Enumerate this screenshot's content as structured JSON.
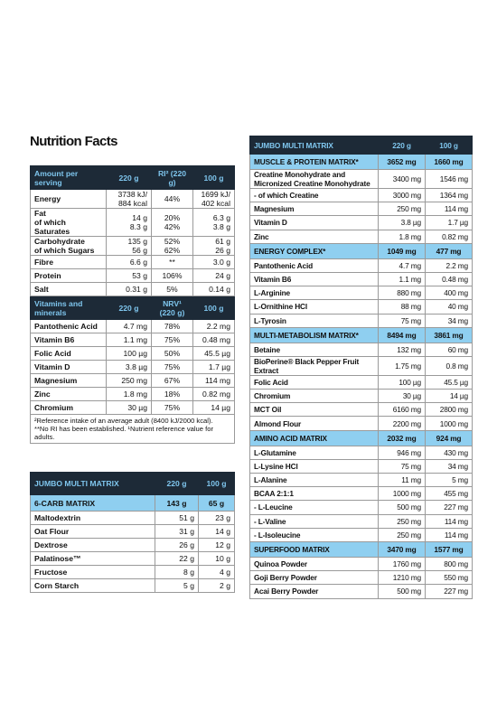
{
  "title": "Nutrition Facts",
  "nutrition_table": {
    "header": [
      "Amount per serving",
      "220 g",
      "RI² (220 g)",
      "100 g"
    ],
    "rows": [
      [
        "Energy",
        "3738 kJ/\n884 kcal",
        "44%",
        "1699 kJ/\n402 kcal"
      ],
      [
        "Fat\nof which Saturates",
        "14 g\n8.3 g",
        "20%\n42%",
        "6.3 g\n3.8 g"
      ],
      [
        "Carbohydrate\nof which Sugars",
        "135 g\n56 g",
        "52%\n62%",
        "61 g\n26 g"
      ],
      [
        "Fibre",
        "6.6 g",
        "**",
        "3.0 g"
      ],
      [
        "Protein",
        "53 g",
        "106%",
        "24 g"
      ],
      [
        "Salt",
        "0.31 g",
        "5%",
        "0.14 g"
      ]
    ],
    "section_header": [
      "Vitamins and minerals",
      "220 g",
      "NRV¹ (220 g)",
      "100 g"
    ],
    "vitamin_rows": [
      [
        "Pantothenic Acid",
        "4.7 mg",
        "78%",
        "2.2 mg"
      ],
      [
        "Vitamin B6",
        "1.1 mg",
        "75%",
        "0.48 mg"
      ],
      [
        "Folic Acid",
        "100 µg",
        "50%",
        "45.5 µg"
      ],
      [
        "Vitamin D",
        "3.8 µg",
        "75%",
        "1.7 µg"
      ],
      [
        "Magnesium",
        "250 mg",
        "67%",
        "114 mg"
      ],
      [
        "Zinc",
        "1.8 mg",
        "18%",
        "0.82 mg"
      ],
      [
        "Chromium",
        "30 µg",
        "75%",
        "14 µg"
      ]
    ],
    "footnote": "²Reference intake of an average adult (8400 kJ/2000 kcal).\n**No RI has been established. ¹Nutrient reference value for adults."
  },
  "carb_table": {
    "header": [
      "JUMBO MULTI MATRIX",
      "220 g",
      "100 g"
    ],
    "section": [
      "6-CARB MATRIX",
      "143 g",
      "65 g"
    ],
    "rows": [
      [
        "Maltodextrin",
        "51 g",
        "23 g"
      ],
      [
        "Oat Flour",
        "31 g",
        "14 g"
      ],
      [
        "Dextrose",
        "26 g",
        "12 g"
      ],
      [
        "Palatinose™",
        "22 g",
        "10 g"
      ],
      [
        "Fructose",
        "8 g",
        "4 g"
      ],
      [
        "Corn Starch",
        "5 g",
        "2 g"
      ]
    ]
  },
  "matrix_table": {
    "header": [
      "JUMBO MULTI MATRIX",
      "220 g",
      "100 g"
    ],
    "sections": [
      {
        "header": [
          "MUSCLE & PROTEIN MATRIX*",
          "3652 mg",
          "1660 mg"
        ],
        "rows": [
          [
            "Creatine Monohydrate and Micronized Creatine Monohydrate",
            "3400 mg",
            "1546 mg"
          ],
          [
            "- of which Creatine",
            "3000 mg",
            "1364 mg"
          ],
          [
            "Magnesium",
            "250 mg",
            "114 mg"
          ],
          [
            "Vitamin D",
            "3.8 µg",
            "1.7 µg"
          ],
          [
            "Zinc",
            "1.8 mg",
            "0.82 mg"
          ]
        ]
      },
      {
        "header": [
          "ENERGY COMPLEX*",
          "1049 mg",
          "477 mg"
        ],
        "rows": [
          [
            "Pantothenic Acid",
            "4.7 mg",
            "2.2 mg"
          ],
          [
            "Vitamin B6",
            "1.1 mg",
            "0.48 mg"
          ],
          [
            "L-Arginine",
            "880 mg",
            "400 mg"
          ],
          [
            "L-Ornithine HCl",
            "88 mg",
            "40 mg"
          ],
          [
            "L-Tyrosin",
            "75 mg",
            "34 mg"
          ]
        ]
      },
      {
        "header": [
          "MULTI-METABOLISM MATRIX*",
          "8494 mg",
          "3861 mg"
        ],
        "rows": [
          [
            "Betaine",
            "132 mg",
            "60 mg"
          ],
          [
            "BioPerine® Black Pepper Fruit Extract",
            "1.75 mg",
            "0.8 mg"
          ],
          [
            "Folic Acid",
            "100 µg",
            "45.5 µg"
          ],
          [
            "Chromium",
            "30 µg",
            "14 µg"
          ],
          [
            "MCT Oil",
            "6160 mg",
            "2800 mg"
          ],
          [
            "Almond Flour",
            "2200 mg",
            "1000 mg"
          ]
        ]
      },
      {
        "header": [
          "AMINO ACID MATRIX",
          "2032 mg",
          "924 mg"
        ],
        "rows": [
          [
            "L-Glutamine",
            "946 mg",
            "430 mg"
          ],
          [
            "L-Lysine HCl",
            "75 mg",
            "34 mg"
          ],
          [
            "L-Alanine",
            "11 mg",
            "5 mg"
          ],
          [
            "BCAA 2:1:1",
            "1000 mg",
            "455 mg"
          ],
          [
            "- L-Leucine",
            "500 mg",
            "227 mg"
          ],
          [
            "- L-Valine",
            "250 mg",
            "114 mg"
          ],
          [
            "- L-Isoleucine",
            "250 mg",
            "114 mg"
          ]
        ]
      },
      {
        "header": [
          "SUPERFOOD MATRIX",
          "3470 mg",
          "1577 mg"
        ],
        "rows": [
          [
            "Quinoa Powder",
            "1760 mg",
            "800 mg"
          ],
          [
            "Goji Berry Powder",
            "1210 mg",
            "550 mg"
          ],
          [
            "Acai Berry Powder",
            "500 mg",
            "227 mg"
          ]
        ]
      }
    ]
  }
}
